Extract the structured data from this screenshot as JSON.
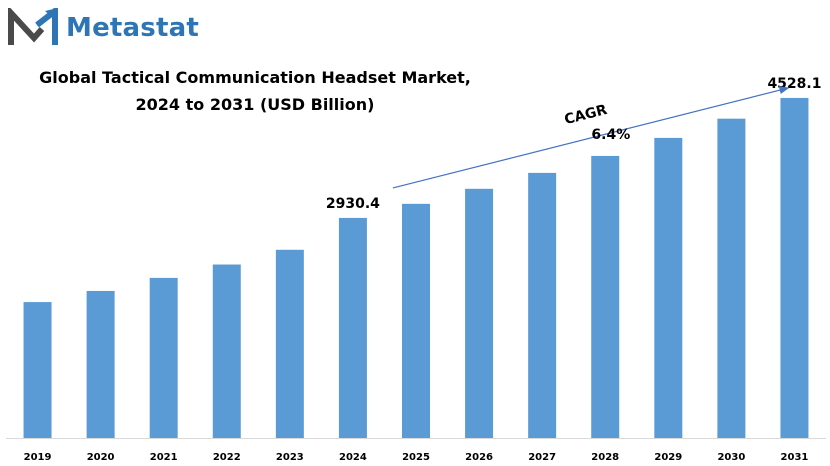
{
  "brand": {
    "name": "Metastat",
    "logo_icon": "metastat-m-logo-icon",
    "name_color": "#2e75b6",
    "logo_dark_color": "#4a4a4a",
    "logo_accent_color": "#2e75b6"
  },
  "chart_data": {
    "type": "bar",
    "title_lines": [
      "Global Tactical Communication Headset Market,",
      "2024 to 2031 (USD Billion)"
    ],
    "xlabel": "",
    "ylabel": "",
    "categories": [
      "2019",
      "2020",
      "2021",
      "2022",
      "2023",
      "2024",
      "2025",
      "2026",
      "2027",
      "2028",
      "2029",
      "2030",
      "2031"
    ],
    "values": [
      1810,
      1958,
      2132,
      2310,
      2506,
      2930.4,
      3118,
      3318,
      3530,
      3756,
      3996,
      4252,
      4528.1
    ],
    "ylim": [
      0,
      4900
    ],
    "grid": false,
    "legend": "none",
    "bar_color": "#5b9bd5",
    "axis_color": "#d9d9d9",
    "data_labels": [
      {
        "category": "2024",
        "text": "2930.4"
      },
      {
        "category": "2031",
        "text": "4528.1"
      }
    ],
    "annotation": {
      "type": "cagr-arrow",
      "from_category": "2024",
      "to_category": "2031",
      "label": "CAGR",
      "value": "6.4%",
      "color": "#4472c4"
    }
  }
}
